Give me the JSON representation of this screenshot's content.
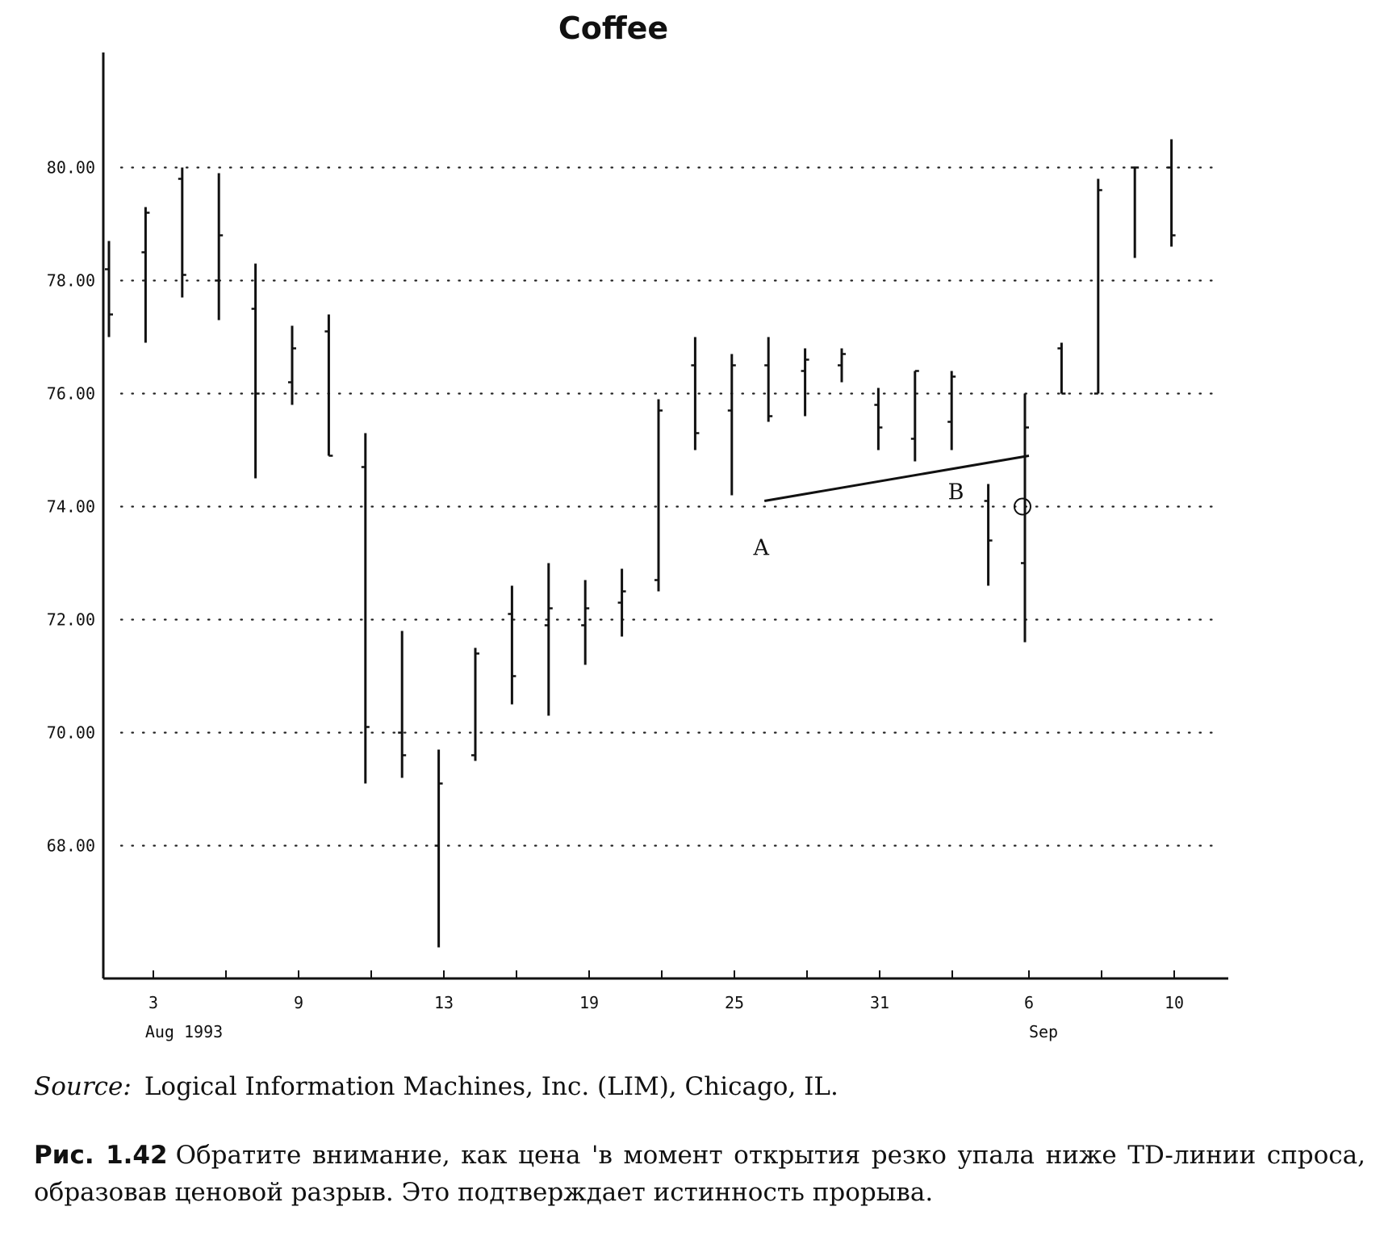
{
  "chart_data": {
    "type": "bar",
    "title": "Coffee",
    "xlabel": "",
    "ylabel": "",
    "ylim": [
      65.5,
      82
    ],
    "y_ticks": [
      68,
      70,
      72,
      74,
      76,
      78,
      80
    ],
    "y_tick_labels": [
      "68.00",
      "70.00",
      "72.00",
      "74.00",
      "76.00",
      "78.00",
      "80.00"
    ],
    "grid": true,
    "x_tick_labels": [
      "3",
      "9",
      "13",
      "19",
      "25",
      "31",
      "6",
      "10"
    ],
    "month_labels": [
      "Aug 1993",
      "Sep"
    ],
    "bars": [
      {
        "high": 78.7,
        "low": 77.0,
        "open": 78.2,
        "close": 77.4
      },
      {
        "high": 79.3,
        "low": 76.9,
        "open": 78.5,
        "close": 79.2
      },
      {
        "high": 80.0,
        "low": 77.7,
        "open": 79.8,
        "close": 78.1
      },
      {
        "high": 79.9,
        "low": 77.3,
        "open": 78.0,
        "close": 78.8
      },
      {
        "high": 78.3,
        "low": 74.5,
        "open": 77.5,
        "close": 76.0
      },
      {
        "high": 77.2,
        "low": 75.8,
        "open": 76.2,
        "close": 76.8
      },
      {
        "high": 77.4,
        "low": 74.9,
        "open": 77.1,
        "close": 74.9
      },
      {
        "high": 75.3,
        "low": 69.1,
        "open": 74.7,
        "close": 70.1
      },
      {
        "high": 71.8,
        "low": 69.2,
        "open": 70.0,
        "close": 69.6
      },
      {
        "high": 69.7,
        "low": 66.2,
        "open": 68.0,
        "close": 69.1
      },
      {
        "high": 71.5,
        "low": 69.5,
        "open": 69.6,
        "close": 71.4
      },
      {
        "high": 72.6,
        "low": 70.5,
        "open": 72.1,
        "close": 71.0
      },
      {
        "high": 73.0,
        "low": 70.3,
        "open": 71.9,
        "close": 72.2
      },
      {
        "high": 72.7,
        "low": 71.2,
        "open": 71.9,
        "close": 72.2
      },
      {
        "high": 72.9,
        "low": 71.7,
        "open": 72.3,
        "close": 72.5
      },
      {
        "high": 75.9,
        "low": 72.5,
        "open": 72.7,
        "close": 75.7
      },
      {
        "high": 77.0,
        "low": 75.0,
        "open": 76.5,
        "close": 75.3
      },
      {
        "high": 76.7,
        "low": 74.2,
        "open": 75.7,
        "close": 76.5
      },
      {
        "high": 77.0,
        "low": 75.5,
        "open": 76.5,
        "close": 75.6
      },
      {
        "high": 76.8,
        "low": 75.6,
        "open": 76.4,
        "close": 76.6
      },
      {
        "high": 76.8,
        "low": 76.2,
        "open": 76.5,
        "close": 76.7
      },
      {
        "high": 76.1,
        "low": 75.0,
        "open": 75.8,
        "close": 75.4
      },
      {
        "high": 76.4,
        "low": 74.8,
        "open": 75.2,
        "close": 76.4
      },
      {
        "high": 76.4,
        "low": 75.0,
        "open": 75.5,
        "close": 76.3
      },
      {
        "high": 74.4,
        "low": 72.6,
        "open": 74.1,
        "close": 73.4
      },
      {
        "high": 76.0,
        "low": 71.6,
        "open": 73.0,
        "close": 75.4
      },
      {
        "high": 76.9,
        "low": 76.0,
        "open": 76.8,
        "close": 76.0
      },
      {
        "high": 79.8,
        "low": 76.0,
        "open": 76.0,
        "close": 79.6
      },
      {
        "high": 80.0,
        "low": 78.4,
        "open": 80.0,
        "close": 80.0
      },
      {
        "high": 80.5,
        "low": 78.6,
        "open": 80.0,
        "close": 78.8
      }
    ],
    "td_line": {
      "from": {
        "bar": 18,
        "value": 74.1
      },
      "to": {
        "bar": 25,
        "value": 74.9
      }
    },
    "annotations": [
      {
        "label": "A",
        "bar": 18,
        "value": 73.6
      },
      {
        "label": "B",
        "bar": 24,
        "value": 74.3
      }
    ],
    "highlight": {
      "bar": 25,
      "value": 74.0
    }
  },
  "source": {
    "label": "Source:",
    "text": "Logical Information Machines, Inc. (LIM), Chicago, IL."
  },
  "caption": {
    "number": "Рис. 1.42",
    "text": "Обратите внимание, как цена 'в момент открытия резко упала ниже TD-линии спроса, образовав ценовой разрыв. Это подтверждает истинность прорыва."
  }
}
